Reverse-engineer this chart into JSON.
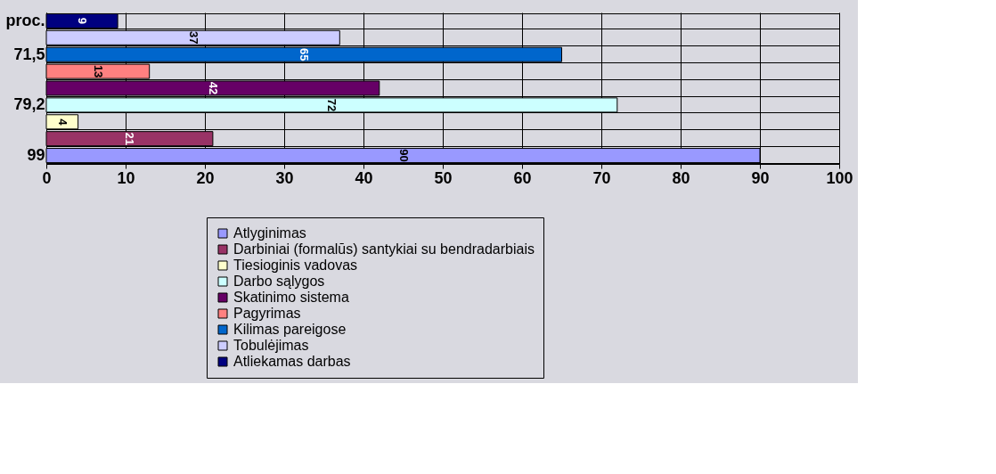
{
  "chart_data": {
    "type": "bar",
    "orientation": "horizontal",
    "categories": [
      "proc.",
      null,
      "71,5",
      null,
      null,
      "79,2",
      null,
      null,
      "99"
    ],
    "series": [
      {
        "name": "Atlyginimas",
        "color": "#9999ff",
        "values": [
          null,
          null,
          null,
          null,
          null,
          null,
          null,
          null,
          90
        ]
      },
      {
        "name": "Darbiniai (formalūs) santykiai su bendradarbiais",
        "color": "#993366",
        "values": [
          null,
          null,
          null,
          null,
          null,
          null,
          null,
          21,
          null
        ]
      },
      {
        "name": "Tiesioginis vadovas",
        "color": "#ffffcc",
        "values": [
          null,
          null,
          null,
          null,
          null,
          null,
          4,
          null,
          null
        ]
      },
      {
        "name": "Darbo sąlygos",
        "color": "#ccffff",
        "values": [
          null,
          null,
          null,
          null,
          null,
          72,
          null,
          null,
          null
        ]
      },
      {
        "name": "Skatinimo sistema",
        "color": "#660066",
        "values": [
          null,
          null,
          null,
          null,
          42,
          null,
          null,
          null,
          null
        ]
      },
      {
        "name": "Pagyrimas",
        "color": "#ff8080",
        "values": [
          null,
          null,
          null,
          13,
          null,
          null,
          null,
          null,
          null
        ]
      },
      {
        "name": "Kilimas pareigose",
        "color": "#0066cc",
        "values": [
          null,
          null,
          65,
          null,
          null,
          null,
          null,
          null,
          null
        ]
      },
      {
        "name": "Tobulėjimas",
        "color": "#ccccff",
        "values": [
          null,
          37,
          null,
          null,
          null,
          null,
          null,
          null,
          null
        ]
      },
      {
        "name": "Atliekamas darbas",
        "color": "#000080",
        "values": [
          9,
          null,
          null,
          null,
          null,
          null,
          null,
          null,
          null
        ]
      }
    ],
    "xlim": [
      0,
      100
    ],
    "xticks": [
      0,
      10,
      20,
      30,
      40,
      50,
      60,
      70,
      80,
      90,
      100
    ],
    "grid": true,
    "legend": "bottom",
    "data_labels": true
  }
}
